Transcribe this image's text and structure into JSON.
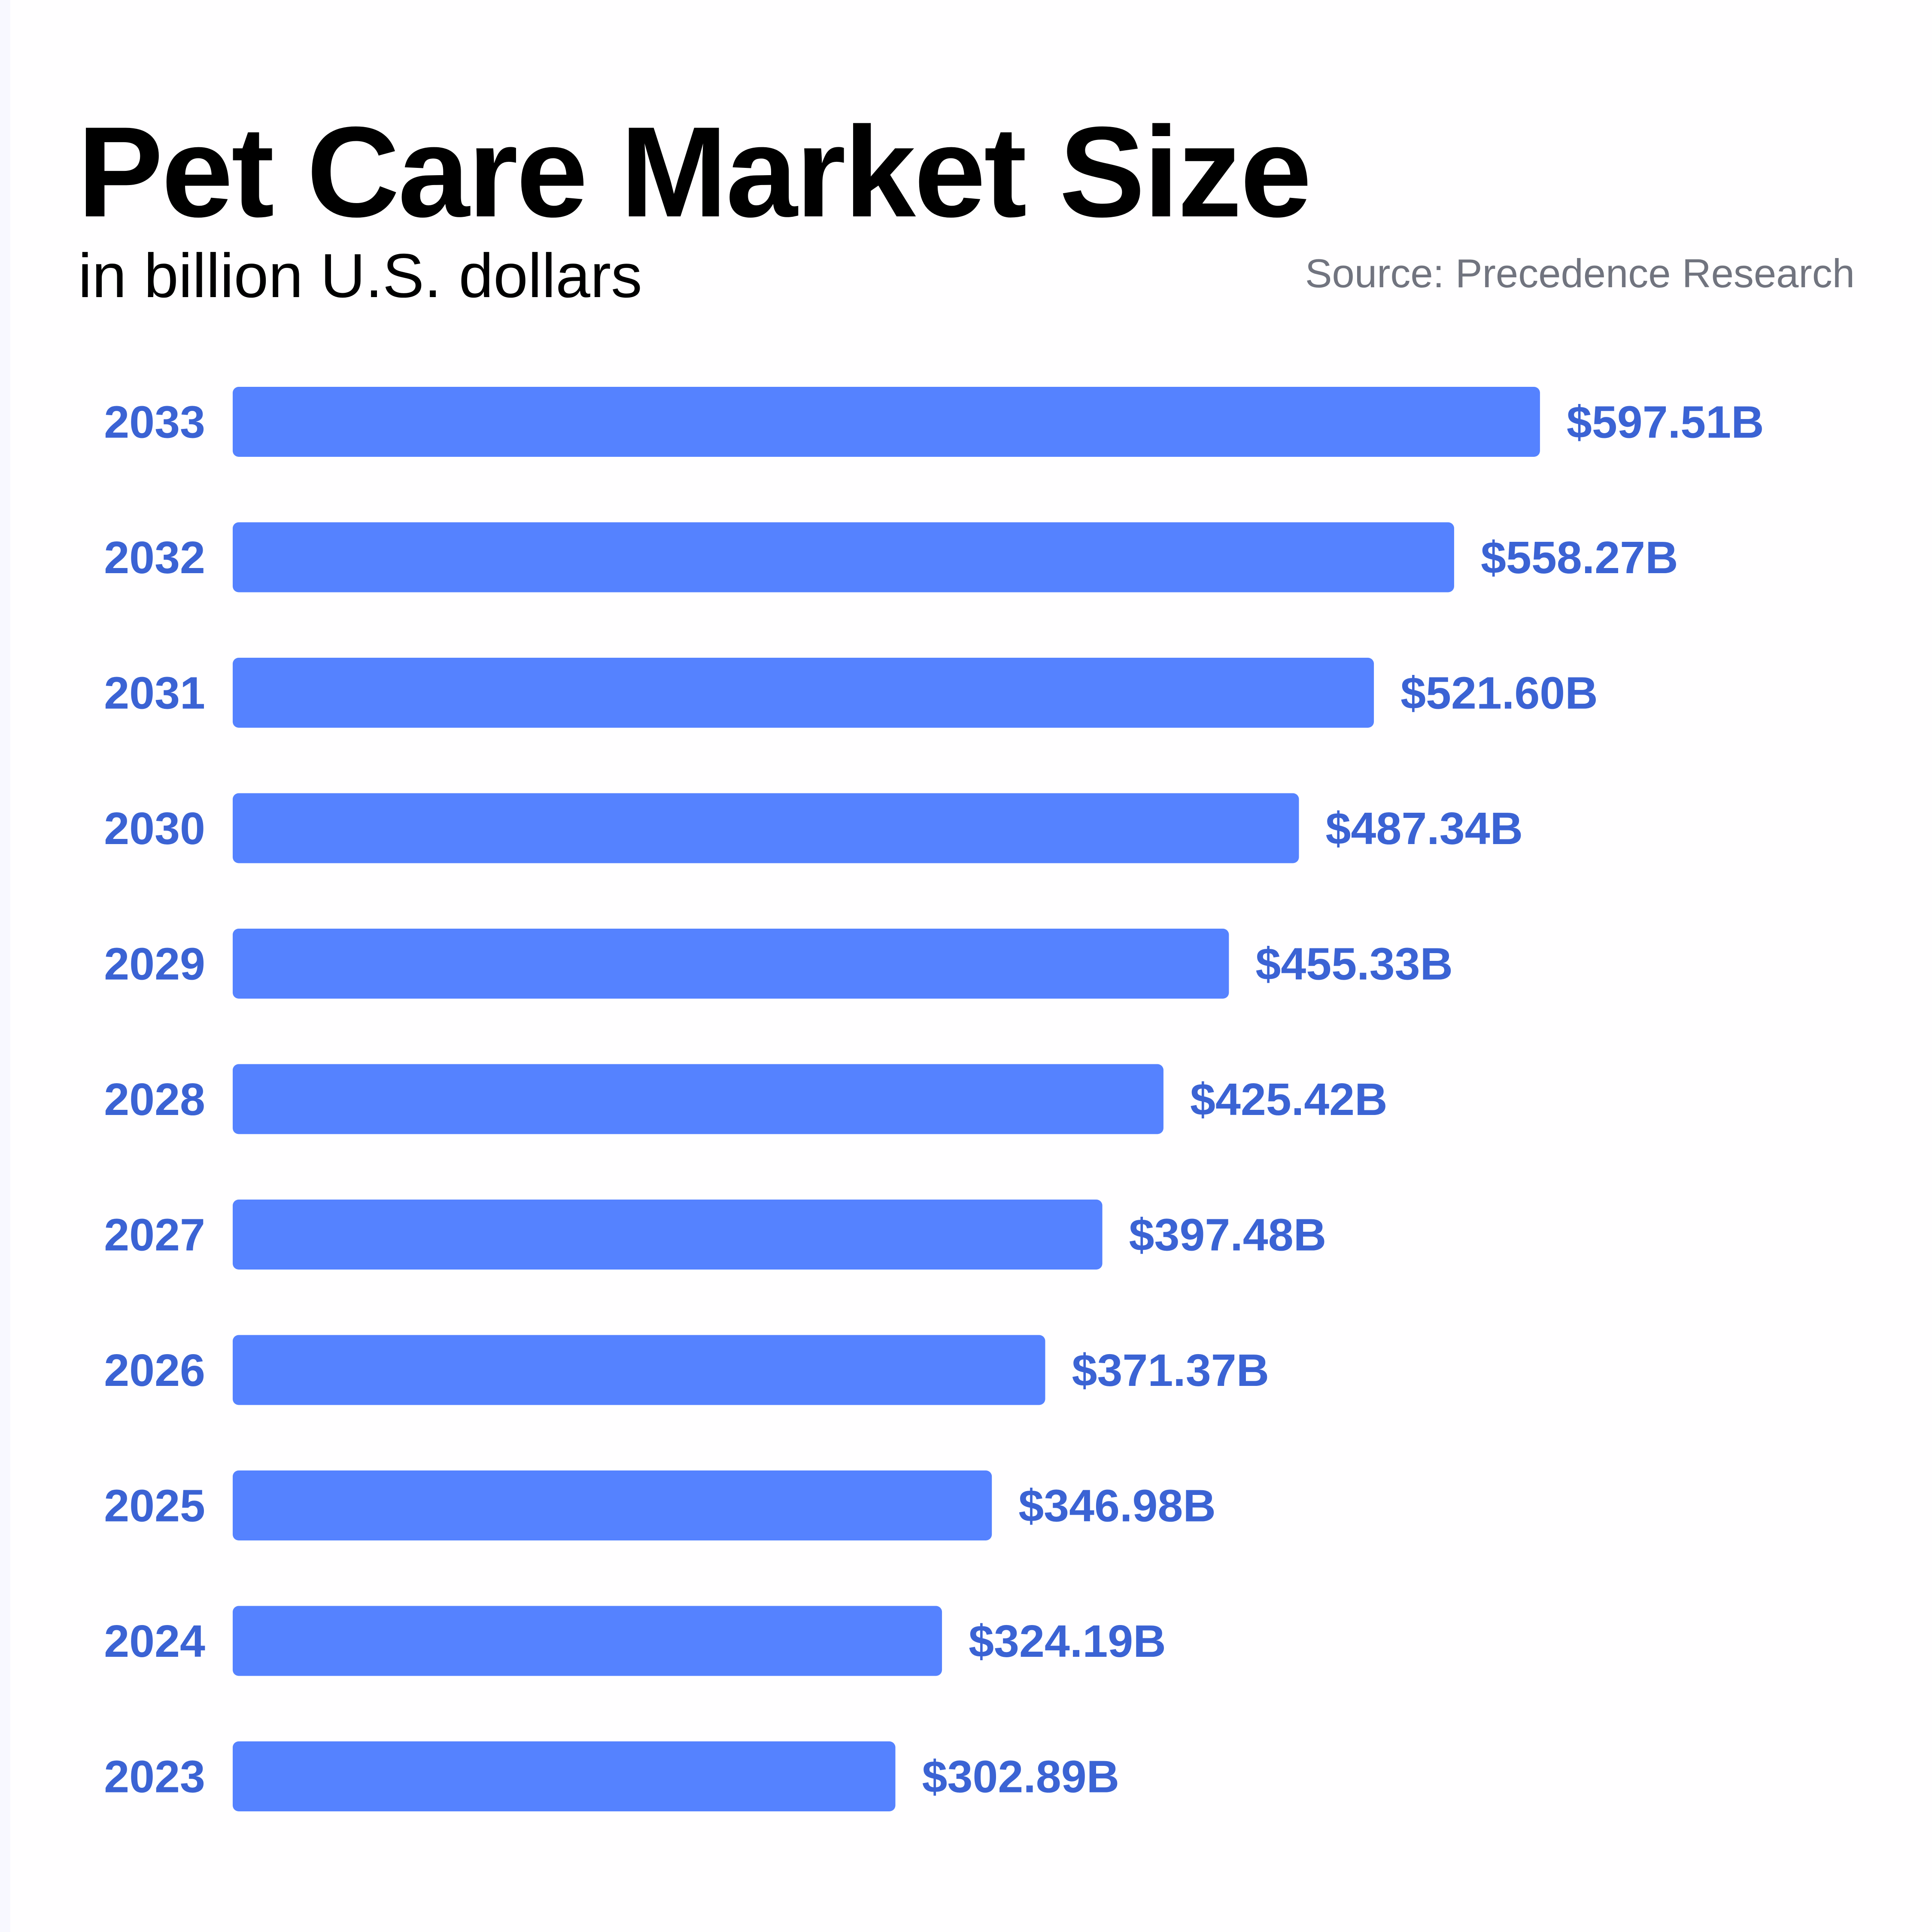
{
  "chart_data": {
    "type": "bar",
    "orientation": "horizontal",
    "title": "Pet Care Market Size",
    "subtitle": "in billion U.S. dollars",
    "source": "Source: Precedence Research",
    "categories": [
      "2033",
      "2032",
      "2031",
      "2030",
      "2029",
      "2028",
      "2027",
      "2026",
      "2025",
      "2024",
      "2023"
    ],
    "values": [
      597.51,
      558.27,
      521.6,
      487.34,
      455.33,
      425.42,
      397.48,
      371.37,
      346.98,
      324.19,
      302.89
    ],
    "data_labels": [
      "$597.51B",
      "$558.27B",
      "$521.60B",
      "$487.34B",
      "$455.33B",
      "$425.42B",
      "$397.48B",
      "$371.37B",
      "$346.98B",
      "$324.19B",
      "$302.89B"
    ],
    "xlim": [
      0,
      600
    ],
    "grid": false,
    "colors": {
      "bar": "#5582ff",
      "label": "#3b63d4",
      "source": "#71747f"
    }
  }
}
